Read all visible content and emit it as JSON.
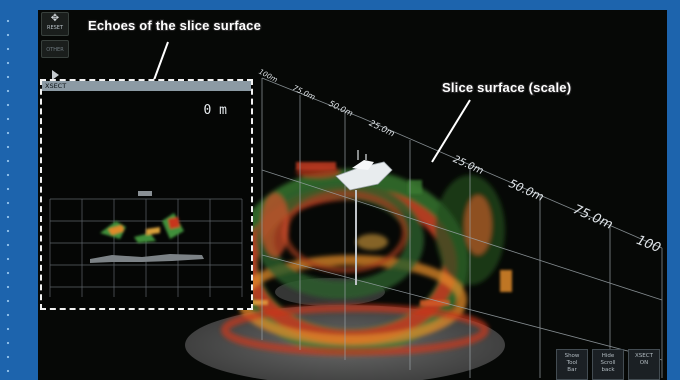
{
  "annotations": {
    "echoes_label": "Echoes of the slice surface",
    "slice_label": "Slice surface (scale)"
  },
  "side_buttons": {
    "reset_label": "RESET",
    "other_label": "OTHER"
  },
  "scale_labels": [
    "100m",
    "75.0m",
    "50.0m",
    "25.0m",
    "25.0m",
    "50.0m",
    "75.0m",
    "100"
  ],
  "xsect": {
    "title": "XSECT",
    "depth": "0 m"
  },
  "bottom_buttons": [
    {
      "line1": "Show",
      "line2": "Tool",
      "line3": "Bar"
    },
    {
      "line1": "Hide",
      "line2": "Scroll",
      "line3": "back"
    },
    {
      "line1": "XSECT",
      "line2": "ON",
      "line3": ""
    }
  ],
  "colors": {
    "frame_blue": "#1d64ad",
    "screen_bg": "#060806",
    "echo_red": "#c8361e",
    "echo_orange": "#e08a2a",
    "echo_green": "#3f8f3a"
  }
}
